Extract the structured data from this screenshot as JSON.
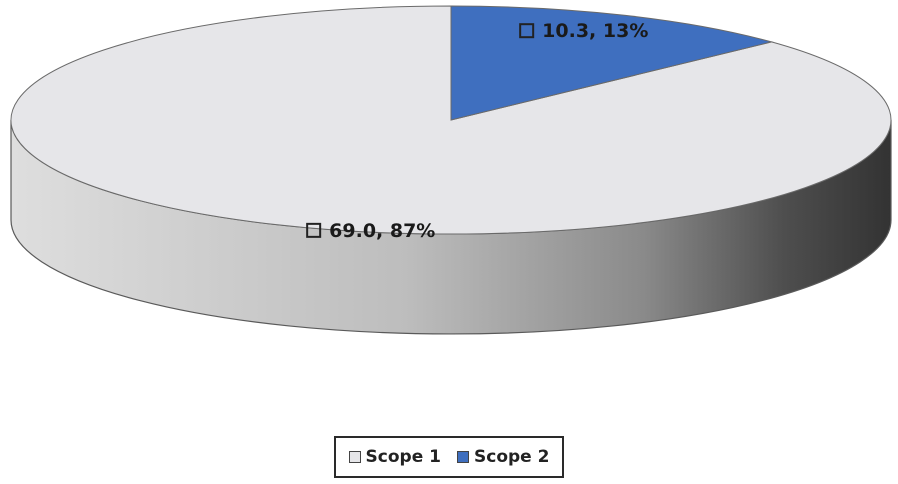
{
  "chart_data": {
    "type": "pie",
    "style": "3d",
    "title": "",
    "slices": [
      {
        "name": "Scope 1",
        "value": 69.0,
        "percent": 87,
        "label": "69.0, 87%",
        "color": "#e6e6e9"
      },
      {
        "name": "Scope 2",
        "value": 10.3,
        "percent": 13,
        "label": "10.3, 13%",
        "color": "#3f6fbf"
      }
    ],
    "legend": {
      "position": "bottom",
      "items": [
        "Scope 1",
        "Scope 2"
      ]
    }
  }
}
